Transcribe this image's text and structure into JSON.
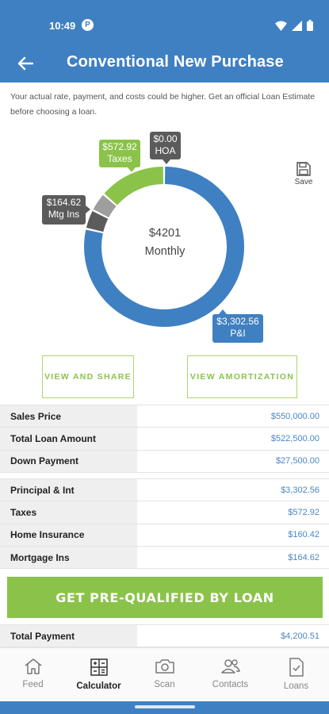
{
  "status": {
    "time": "10:49",
    "app_badge": "P"
  },
  "header": {
    "title": "Conventional New Purchase"
  },
  "disclaimer": "Your actual rate, payment, and costs could be higher. Get an official Loan Estimate before choosing a loan.",
  "chart_data": {
    "type": "donut",
    "center_amount": "$4201",
    "center_label": "Monthly",
    "segments": [
      {
        "name": "P&I",
        "value": 3302.56,
        "label": "$3,302.56",
        "color": "#3f80c2"
      },
      {
        "name": "Mtg Ins",
        "value": 164.62,
        "label": "$164.62",
        "color": "#5b5b5b"
      },
      {
        "name": "Home Insurance",
        "value": 160.42,
        "label": "",
        "color": "#9e9e9e"
      },
      {
        "name": "Taxes",
        "value": 572.92,
        "label": "$572.92",
        "color": "#8bc34a"
      },
      {
        "name": "HOA",
        "value": 0.0,
        "label": "$0.00",
        "color": "#5b5b5b"
      }
    ]
  },
  "tags": {
    "taxes_value": "$572.92",
    "taxes_name": "Taxes",
    "hoa_value": "$0.00",
    "hoa_name": "HOA",
    "mtg_value": "$164.62",
    "mtg_name": "Mtg Ins",
    "pi_value": "$3,302.56",
    "pi_name": "P&I"
  },
  "save_label": "Save",
  "buttons": {
    "share": "VIEW AND SHARE",
    "amortization": "VIEW AMORTIZATION",
    "cta": "GET PRE-QUALIFIED BY LOAN"
  },
  "loan_table": [
    {
      "label": "Sales Price",
      "value": "$550,000.00"
    },
    {
      "label": "Total Loan Amount",
      "value": "$522,500.00"
    },
    {
      "label": "Down Payment",
      "value": "$27,500.00"
    }
  ],
  "payment_table": [
    {
      "label": "Principal & Int",
      "value": "$3,302.56"
    },
    {
      "label": "Taxes",
      "value": "$572.92"
    },
    {
      "label": "Home Insurance",
      "value": "$160.42"
    },
    {
      "label": "Mortgage Ins",
      "value": "$164.62"
    }
  ],
  "total_table": [
    {
      "label": "Total Payment",
      "value": "$4,200.51"
    }
  ],
  "nav": [
    {
      "label": "Feed",
      "icon": "home-icon"
    },
    {
      "label": "Calculator",
      "icon": "calculator-icon",
      "active": true
    },
    {
      "label": "Scan",
      "icon": "camera-icon"
    },
    {
      "label": "Contacts",
      "icon": "contacts-icon"
    },
    {
      "label": "Loans",
      "icon": "document-icon"
    }
  ],
  "colors": {
    "primary": "#3f80c2",
    "accent": "#8bc34a",
    "dark_tag": "#5b5b5b"
  }
}
